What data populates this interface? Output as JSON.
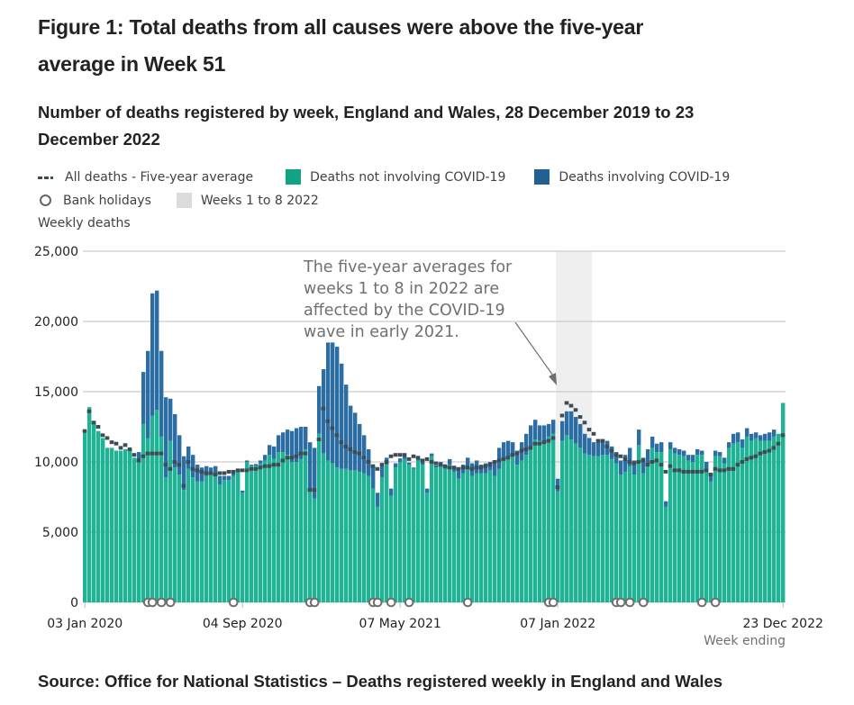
{
  "title": "Figure 1: Total deaths from all causes were above the five-year average in Week 51",
  "subtitle": "Number of deaths registered by week, England and Wales, 28 December 2019 to 23 December 2022",
  "legend": {
    "five_year_average": "All deaths - Five-year average",
    "not_covid": "Deaths not involving COVID-19",
    "covid": "Deaths involving COVID-19",
    "bank_holidays": "Bank holidays",
    "weeks_band": "Weeks 1 to 8 2022"
  },
  "colors": {
    "not_covid": "#1fb294",
    "covid": "#2c6da4",
    "average": "#3c4b54",
    "band": "#efefef",
    "grid": "#cccccc",
    "bank_holiday_stroke": "#6e6e6e"
  },
  "source": "Source: Office for National Statistics – Deaths registered weekly in England and Wales",
  "chart_data": {
    "type": "bar",
    "stacked": true,
    "title": "Number of deaths registered by week, England and Wales, 28 December 2019 to 23 December 2022",
    "ylabel": "Weekly deaths",
    "xlabel": "Week ending",
    "ylim": [
      0,
      25000
    ],
    "yticks": [
      0,
      5000,
      10000,
      15000,
      20000,
      25000
    ],
    "ytick_labels": [
      "0",
      "5,000",
      "10,000",
      "15,000",
      "20,000",
      "25,000"
    ],
    "xtick_labels": [
      {
        "week_index": 0,
        "label": "03 Jan 2020"
      },
      {
        "week_index": 35,
        "label": "04 Sep 2020"
      },
      {
        "week_index": 70,
        "label": "07 May 2021"
      },
      {
        "week_index": 105,
        "label": "07 Jan 2022"
      },
      {
        "week_index": 155,
        "label": "23 Dec 2022"
      }
    ],
    "grid": true,
    "legend_position": "top-left",
    "n_weeks": 156,
    "highlight_band": {
      "label": "Weeks 1 to 8 2022",
      "start_week_index": 105,
      "end_week_index": 112
    },
    "annotation": {
      "lines": [
        "The five-year averages for",
        "weeks 1 to 8 in 2022 are",
        "affected by the COVID-19",
        "wave in early 2021."
      ],
      "points_to_week_index": 105
    },
    "series": [
      {
        "name": "Deaths not involving COVID-19",
        "values": [
          12250,
          13900,
          12900,
          12200,
          11700,
          11000,
          11000,
          10800,
          10800,
          10900,
          11000,
          10300,
          10100,
          12700,
          11700,
          13300,
          13700,
          11800,
          8900,
          11500,
          9600,
          9100,
          8000,
          9500,
          8900,
          8600,
          8600,
          9000,
          9100,
          9200,
          8400,
          8700,
          8700,
          9000,
          9300,
          7800,
          10000,
          9700,
          9700,
          9900,
          10100,
          10500,
          10200,
          10700,
          10700,
          10500,
          10000,
          10000,
          10200,
          10900,
          8100,
          7400,
          12000,
          10600,
          10100,
          9900,
          9600,
          9500,
          9500,
          9400,
          9400,
          9300,
          9200,
          9000,
          8100,
          6800,
          8900,
          9800,
          7600,
          9600,
          10000,
          10200,
          9800,
          9500,
          10100,
          9800,
          7800,
          10400,
          9600,
          9800,
          9500,
          9800,
          9300,
          8800,
          9200,
          9500,
          9000,
          9200,
          9200,
          9200,
          9400,
          9000,
          9500,
          10200,
          10200,
          10400,
          9800,
          10100,
          10500,
          11000,
          11600,
          11500,
          11500,
          11800,
          12000,
          7900,
          11500,
          11900,
          11600,
          11300,
          11000,
          10600,
          10500,
          10400,
          10400,
          10500,
          10500,
          10200,
          9900,
          9100,
          9300,
          9700,
          9100,
          11200,
          9200,
          9800,
          11000,
          10700,
          10700,
          6800,
          10900,
          10600,
          10500,
          10400,
          10100,
          10000,
          10500,
          10500,
          9500,
          8600,
          10400,
          10400,
          9900,
          11000,
          11300,
          11400,
          11000,
          11800,
          11500,
          11700,
          11500,
          11500,
          11500,
          11800,
          12000,
          14200
        ],
        "color": "#1fb294"
      },
      {
        "name": "Deaths involving COVID-19",
        "values": [
          0,
          0,
          0,
          0,
          0,
          0,
          0,
          0,
          0,
          0,
          0,
          0,
          600,
          3700,
          6200,
          8700,
          8500,
          6100,
          5700,
          3000,
          3800,
          2800,
          2400,
          1600,
          1600,
          1200,
          1000,
          700,
          500,
          500,
          600,
          300,
          300,
          250,
          200,
          150,
          100,
          100,
          150,
          200,
          400,
          700,
          900,
          1200,
          1400,
          1800,
          2200,
          2400,
          2300,
          1600,
          3300,
          3600,
          3400,
          6000,
          8400,
          8600,
          8600,
          7500,
          6000,
          4600,
          4100,
          3400,
          2700,
          1900,
          1600,
          1000,
          800,
          500,
          500,
          300,
          250,
          200,
          150,
          100,
          150,
          200,
          300,
          200,
          150,
          200,
          300,
          400,
          400,
          600,
          600,
          800,
          900,
          900,
          600,
          700,
          600,
          1100,
          1500,
          1200,
          1300,
          1000,
          1000,
          1300,
          1500,
          1600,
          1400,
          1100,
          1100,
          900,
          1000,
          900,
          1400,
          1700,
          2000,
          1900,
          1700,
          1400,
          1200,
          1000,
          1000,
          1000,
          1000,
          900,
          800,
          1000,
          1200,
          1300,
          1000,
          1100,
          1100,
          1100,
          800,
          600,
          700,
          400,
          500,
          400,
          400,
          400,
          400,
          500,
          400,
          300,
          500,
          600,
          400,
          300,
          400,
          400,
          700,
          700,
          600,
          600,
          500,
          400,
          400,
          500,
          600,
          500
        ],
        "color": "#2c6da4"
      },
      {
        "name": "All deaths - Five-year average",
        "type": "line-dashed",
        "values": [
          12200,
          13600,
          12800,
          12500,
          11900,
          11700,
          11400,
          11300,
          11000,
          11200,
          10900,
          10500,
          10100,
          10400,
          10600,
          10600,
          10600,
          10600,
          9800,
          9500,
          10000,
          9800,
          8300,
          10000,
          9500,
          9400,
          9300,
          9200,
          9200,
          9100,
          9200,
          9200,
          9300,
          9300,
          9400,
          9400,
          9400,
          9500,
          9500,
          9600,
          9700,
          9700,
          9800,
          9800,
          10100,
          10300,
          10300,
          10400,
          10600,
          10600,
          8000,
          8000,
          11600,
          13800,
          12900,
          12400,
          11900,
          11400,
          11100,
          10900,
          10700,
          10600,
          10300,
          10000,
          9700,
          9500,
          9800,
          10000,
          10400,
          10500,
          10500,
          10500,
          10200,
          10400,
          10300,
          10100,
          10200,
          10000,
          9900,
          9800,
          9700,
          9600,
          9600,
          9500,
          9600,
          9600,
          9500,
          9600,
          9600,
          9700,
          9800,
          10000,
          10100,
          10200,
          10300,
          10500,
          10600,
          10800,
          10900,
          11000,
          11300,
          11300,
          11400,
          11500,
          11700,
          8200,
          13300,
          14200,
          14000,
          13700,
          13200,
          12800,
          12300,
          12000,
          11500,
          11500,
          11100,
          10800,
          10500,
          10400,
          10200,
          10000,
          9900,
          10000,
          10100,
          9800,
          10000,
          10100,
          9800,
          9300,
          9700,
          9400,
          9400,
          9300,
          9300,
          9300,
          9300,
          9300,
          9400,
          9100,
          9500,
          9400,
          9400,
          9500,
          9500,
          9800,
          10000,
          10200,
          10300,
          10400,
          10600,
          10700,
          10800,
          11000,
          11300,
          11900
        ]
      }
    ],
    "bank_holiday_week_indices": [
      14,
      15,
      17,
      19,
      33,
      50,
      51,
      64,
      65,
      68,
      72,
      85,
      103,
      104,
      118,
      119,
      121,
      124,
      137,
      140
    ]
  }
}
